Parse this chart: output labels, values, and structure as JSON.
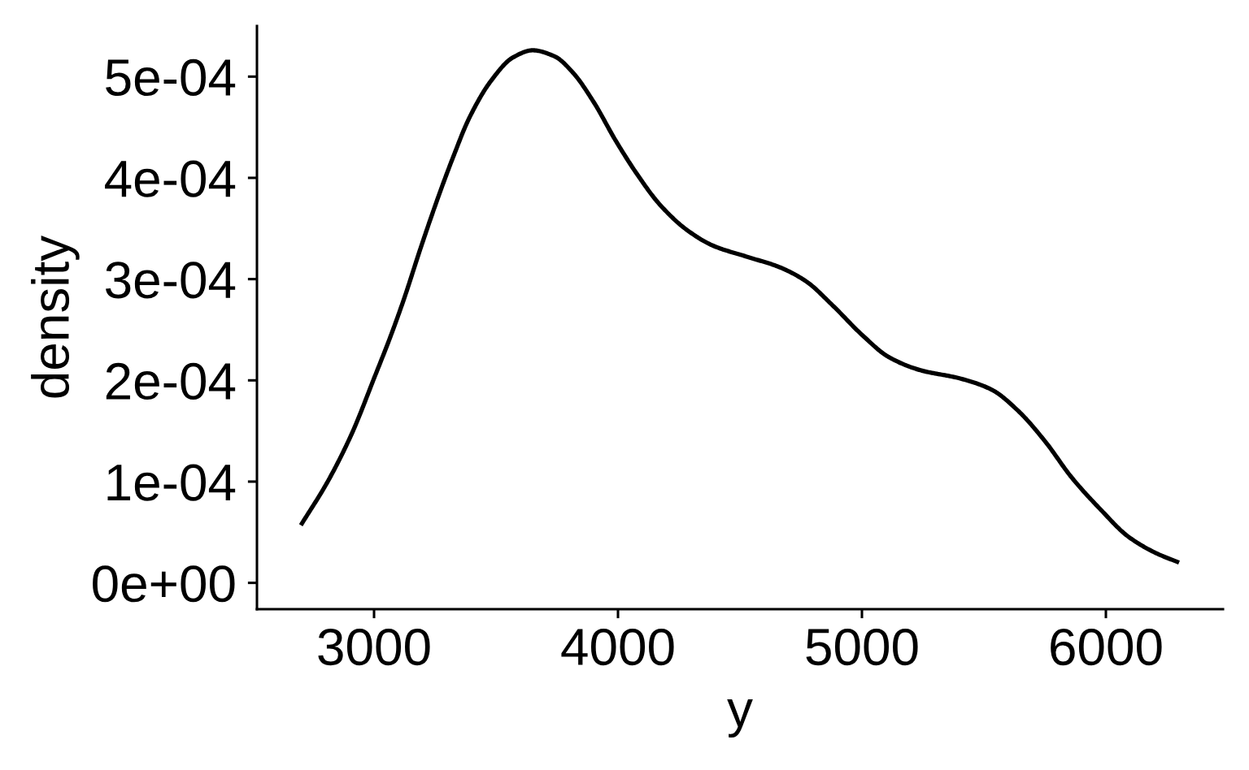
{
  "chart_data": {
    "type": "line",
    "xlabel": "y",
    "ylabel": "density",
    "x": [
      2700,
      2810,
      2910,
      3000,
      3070,
      3125,
      3190,
      3260,
      3325,
      3390,
      3480,
      3570,
      3650,
      3740,
      3815,
      3900,
      3990,
      4080,
      4170,
      4280,
      4390,
      4530,
      4660,
      4770,
      4880,
      5000,
      5110,
      5240,
      5400,
      5530,
      5640,
      5750,
      5860,
      5980,
      6090,
      6200,
      6300
    ],
    "series": [
      {
        "color": "#000000",
        "values": [
          5.7e-05,
          0.0001,
          0.000148,
          0.000202,
          0.000245,
          0.000282,
          0.00033,
          0.000379,
          0.000421,
          0.000459,
          0.000496,
          0.000519,
          0.000526,
          0.00052,
          0.000504,
          0.000475,
          0.000437,
          0.000403,
          0.000374,
          0.000349,
          0.000333,
          0.000322,
          0.000312,
          0.000298,
          0.000274,
          0.000245,
          0.000223,
          0.00021,
          0.000202,
          0.000191,
          0.00017,
          0.00014,
          0.000104,
          7.2e-05,
          4.6e-05,
          3e-05,
          2e-05
        ]
      }
    ],
    "xlim": [
      2520,
      6480
    ],
    "ylim": [
      -2.6e-05,
      0.00055
    ],
    "xticks": [
      3000,
      4000,
      5000,
      6000
    ],
    "yticks": [
      {
        "value": 0,
        "label": "0e+00"
      },
      {
        "value": 0.0001,
        "label": "1e-04"
      },
      {
        "value": 0.0002,
        "label": "2e-04"
      },
      {
        "value": 0.0003,
        "label": "3e-04"
      },
      {
        "value": 0.0004,
        "label": "4e-04"
      },
      {
        "value": 0.0005,
        "label": "5e-04"
      }
    ],
    "grid": false
  }
}
